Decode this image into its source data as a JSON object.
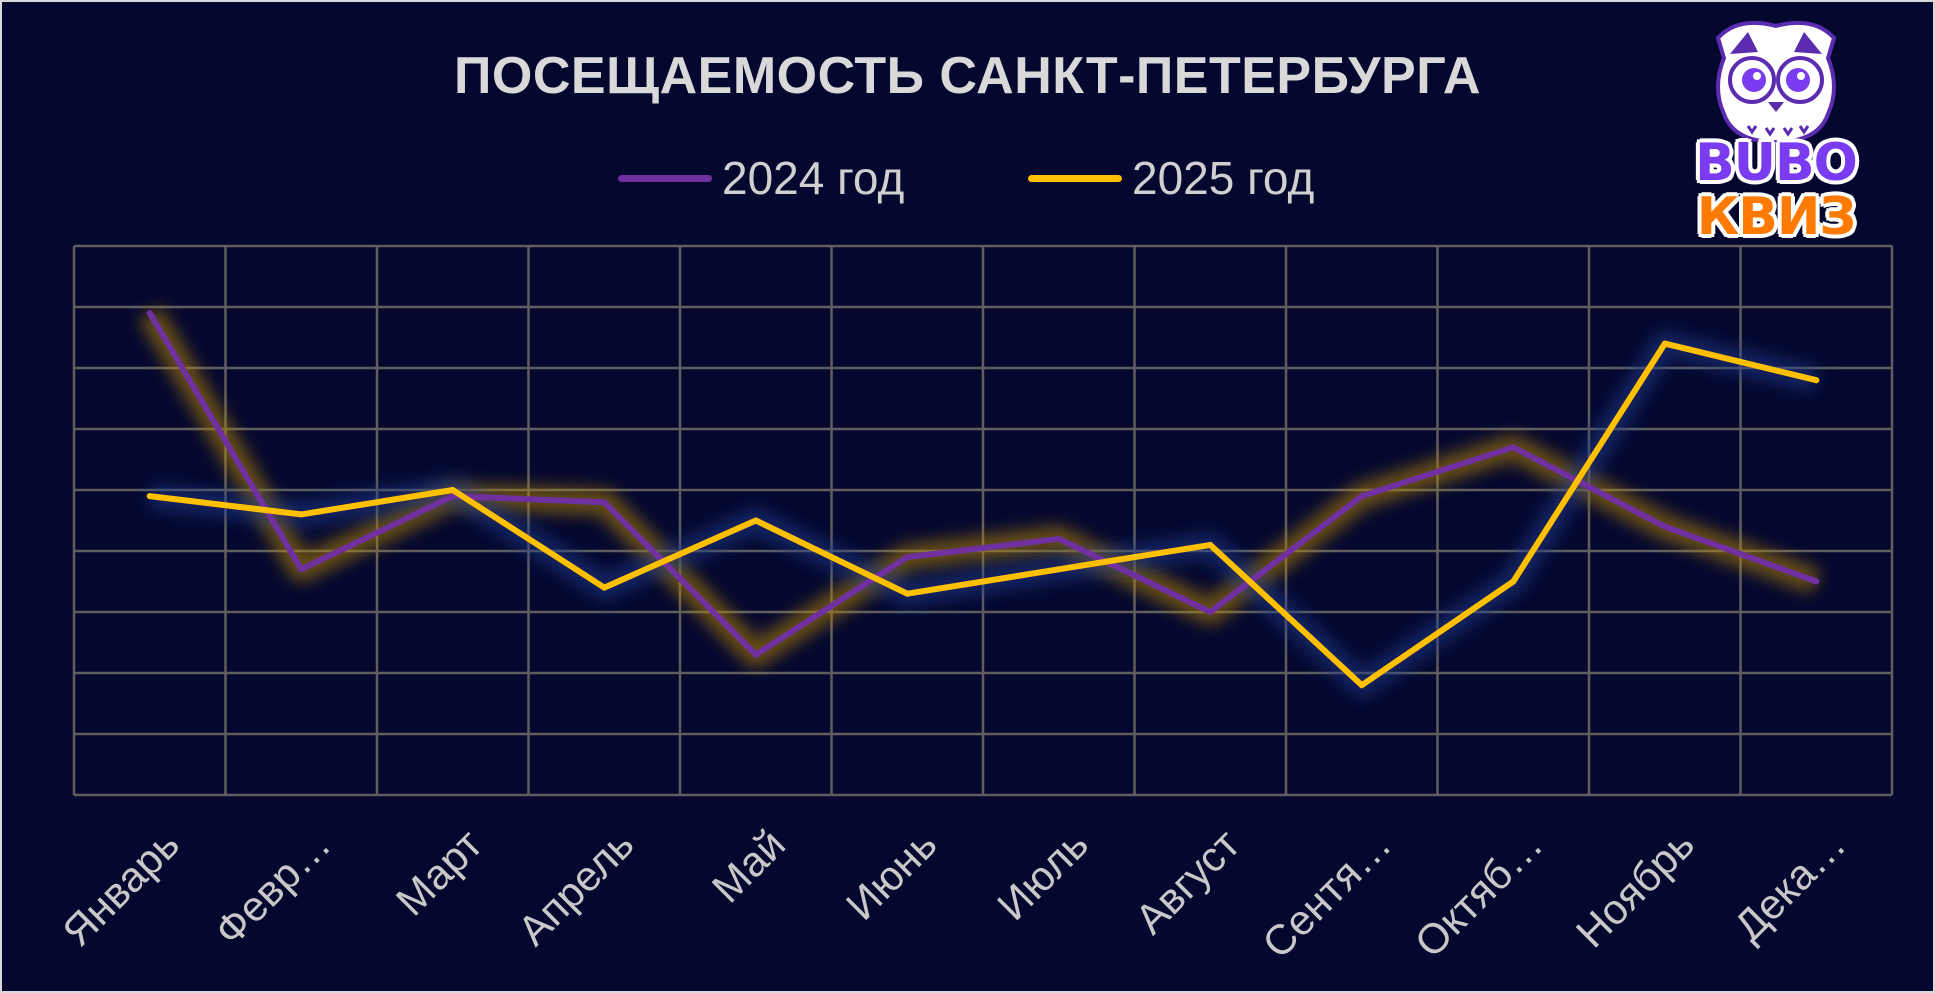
{
  "chart_data": {
    "type": "line",
    "title": "ПОСЕЩАЕМОСТЬ САНКТ-ПЕТЕРБУРГА",
    "categories": [
      "Январь",
      "Февр…",
      "Март",
      "Апрель",
      "Май",
      "Июнь",
      "Июль",
      "Август",
      "Сентя…",
      "Октяб…",
      "Ноябрь",
      "Дека…"
    ],
    "series": [
      {
        "name": "2024 год",
        "color": "#7030a0",
        "values": [
          7.9,
          3.7,
          4.9,
          4.8,
          2.3,
          3.9,
          4.2,
          3.0,
          4.9,
          5.7,
          4.4,
          3.5
        ]
      },
      {
        "name": "2025 год",
        "color": "#ffc000",
        "values": [
          4.9,
          4.6,
          5.0,
          3.4,
          4.5,
          3.3,
          3.7,
          4.1,
          1.8,
          3.5,
          7.4,
          6.8
        ]
      }
    ],
    "ylim": [
      0,
      9
    ],
    "y_ticks_shown": false,
    "grid": true,
    "legend": "top-center"
  },
  "logo": {
    "line1": "BUBO",
    "line2": "КВИЗ"
  }
}
